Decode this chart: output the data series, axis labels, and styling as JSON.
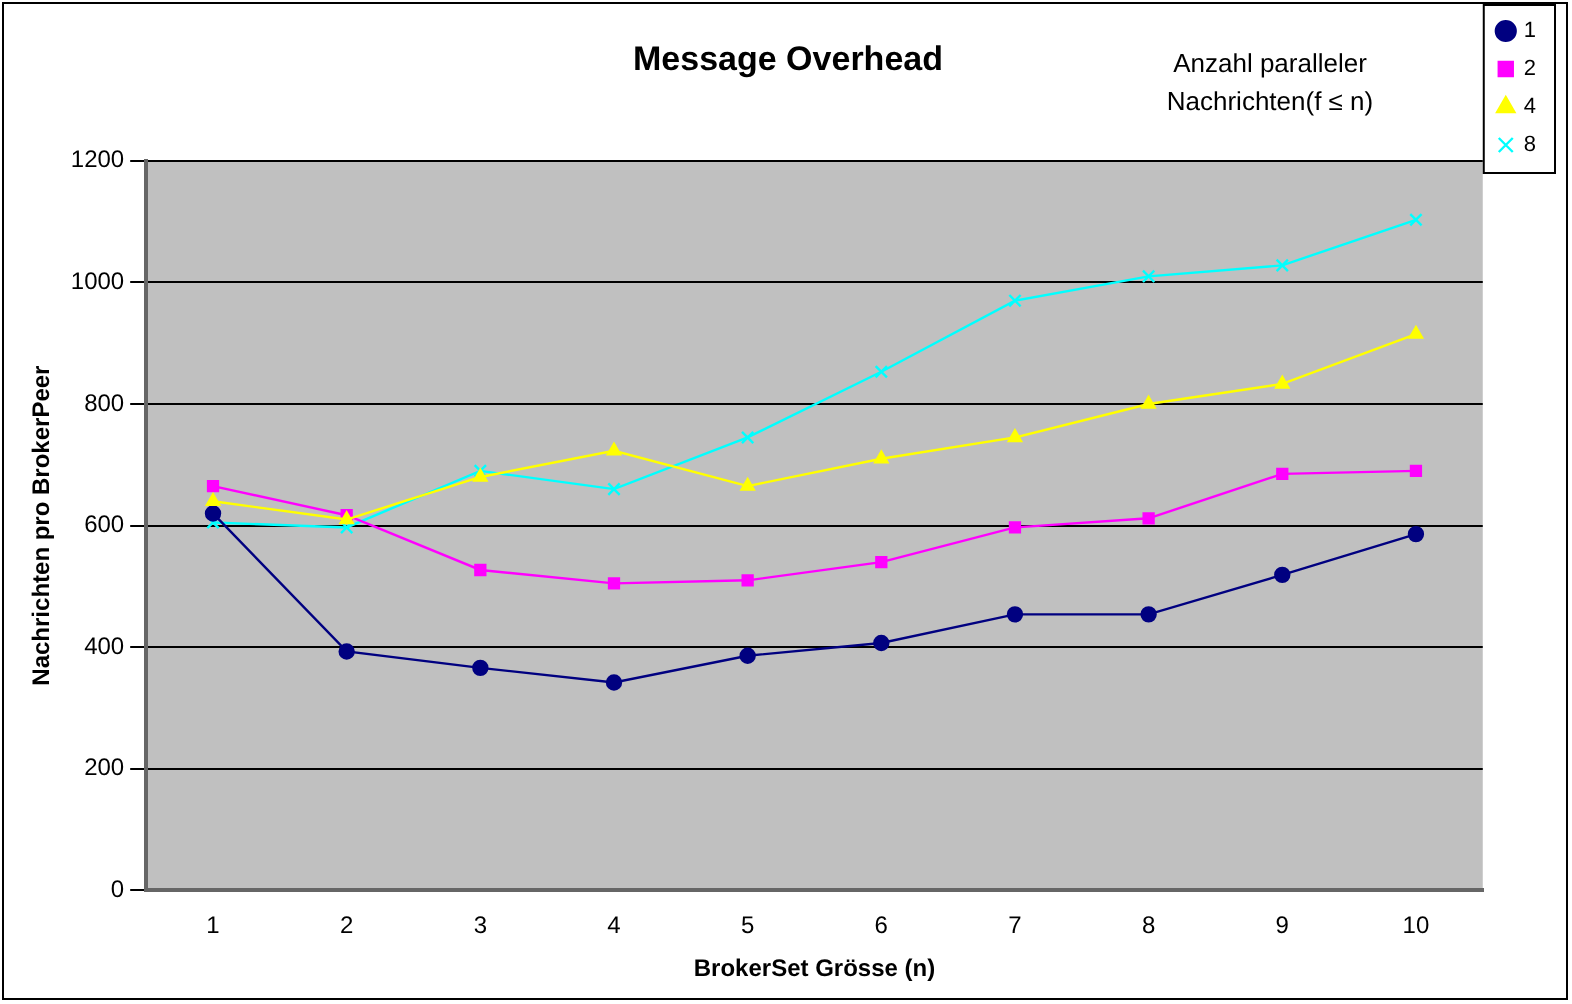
{
  "chart_data": {
    "type": "line",
    "title": "Message Overhead",
    "xlabel": "BrokerSet Grösse (n)",
    "ylabel": "Nachrichten pro BrokerPeer",
    "legend_title": "Anzahl paralleler Nachrichten(f ≤ n)",
    "categories": [
      "1",
      "2",
      "3",
      "4",
      "5",
      "6",
      "7",
      "8",
      "9",
      "10"
    ],
    "series": [
      {
        "name": "1",
        "color": "#000080",
        "marker": "circle",
        "values": [
          620,
          393,
          366,
          342,
          386,
          407,
          454,
          454,
          519,
          586
        ]
      },
      {
        "name": "2",
        "color": "#ff00ff",
        "marker": "square",
        "values": [
          665,
          617,
          527,
          505,
          510,
          540,
          597,
          612,
          685,
          690
        ]
      },
      {
        "name": "4",
        "color": "#ffff00",
        "marker": "triangle",
        "values": [
          640,
          610,
          680,
          723,
          665,
          710,
          745,
          800,
          833,
          915
        ]
      },
      {
        "name": "8",
        "color": "#00ffff",
        "marker": "cross",
        "values": [
          605,
          597,
          690,
          660,
          745,
          853,
          970,
          1010,
          1028,
          1103
        ]
      }
    ],
    "ylim": [
      0,
      1200
    ],
    "yticks": [
      0,
      200,
      400,
      600,
      800,
      1000,
      1200
    ],
    "grid": "y",
    "legend": "top right"
  }
}
